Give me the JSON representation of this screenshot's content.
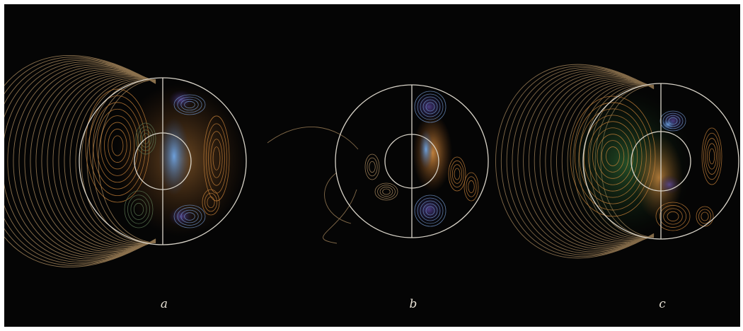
{
  "panels": [
    {
      "label": "a"
    },
    {
      "label": "b"
    },
    {
      "label": "c"
    }
  ],
  "colors": {
    "background": "#050505",
    "outline": "#d8d3c8",
    "orange": "#c8823a",
    "blue": "#4e86c8",
    "green": "#4a9c52",
    "field_line": "#b89566"
  }
}
